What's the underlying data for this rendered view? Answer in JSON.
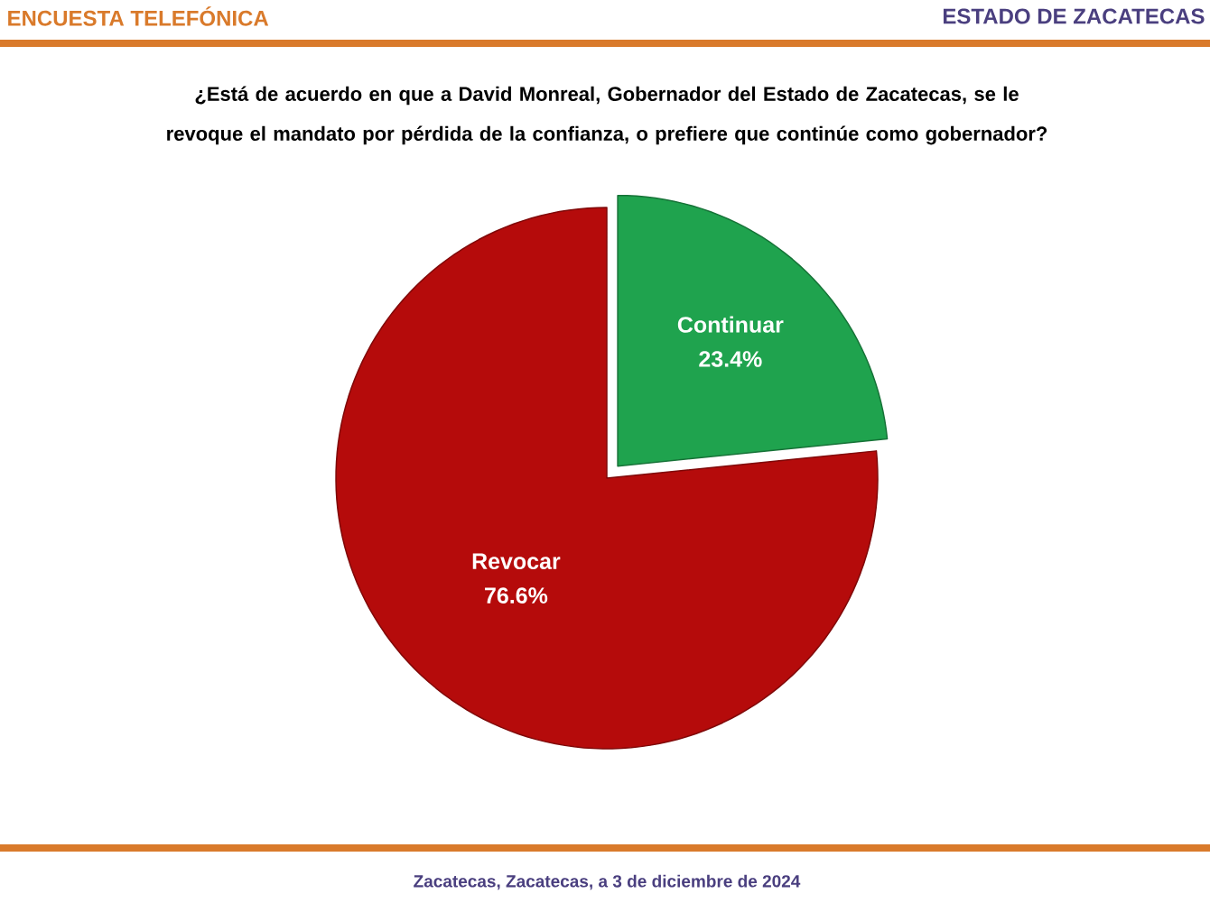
{
  "chart_data": {
    "type": "pie",
    "title": "¿Está de acuerdo en que a David Monreal, Gobernador del Estado de Zacatecas, se le revoque el mandato por pérdida de la confianza, o prefiere que continúe como gobernador?",
    "annotations": [
      "ENCUESTA TELEFÓNICA",
      "ESTADO DE ZACATECAS",
      "Zacatecas, Zacatecas, a 3 de diciembre de 2024"
    ],
    "categories": [
      "Continuar",
      "Revocar"
    ],
    "values": [
      23.4,
      76.6
    ],
    "value_labels": [
      "23.4%",
      "76.6%"
    ],
    "colors": [
      "#1fa34e",
      "#b50b0b"
    ]
  }
}
